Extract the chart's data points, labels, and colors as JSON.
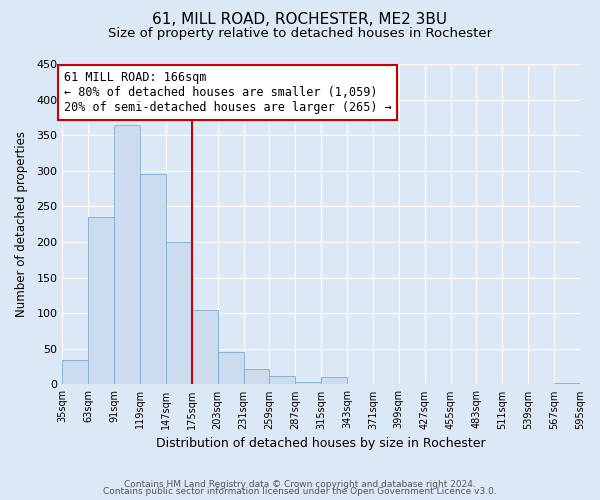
{
  "title": "61, MILL ROAD, ROCHESTER, ME2 3BU",
  "subtitle": "Size of property relative to detached houses in Rochester",
  "xlabel": "Distribution of detached houses by size in Rochester",
  "ylabel": "Number of detached properties",
  "bar_values": [
    35,
    235,
    365,
    295,
    200,
    105,
    45,
    22,
    12,
    3,
    10,
    0,
    0,
    0,
    0,
    0,
    0,
    0,
    0,
    2
  ],
  "bin_labels": [
    "35sqm",
    "63sqm",
    "91sqm",
    "119sqm",
    "147sqm",
    "175sqm",
    "203sqm",
    "231sqm",
    "259sqm",
    "287sqm",
    "315sqm",
    "343sqm",
    "371sqm",
    "399sqm",
    "427sqm",
    "455sqm",
    "483sqm",
    "511sqm",
    "539sqm",
    "567sqm",
    "595sqm"
  ],
  "bar_color": "#ccdcee",
  "bar_edge_color": "#7aadd4",
  "property_line_color": "#cc0000",
  "property_line_bin": 5,
  "annotation_text_line1": "61 MILL ROAD: 166sqm",
  "annotation_text_line2": "← 80% of detached houses are smaller (1,059)",
  "annotation_text_line3": "20% of semi-detached houses are larger (265) →",
  "ylim": [
    0,
    450
  ],
  "yticks": [
    0,
    50,
    100,
    150,
    200,
    250,
    300,
    350,
    400,
    450
  ],
  "background_color": "#dce8f5",
  "plot_bg_color": "#dce8f5",
  "grid_color": "#ffffff",
  "footer_line1": "Contains HM Land Registry data © Crown copyright and database right 2024.",
  "footer_line2": "Contains public sector information licensed under the Open Government Licence v3.0.",
  "title_fontsize": 11,
  "subtitle_fontsize": 9.5,
  "xlabel_fontsize": 9,
  "ylabel_fontsize": 8.5,
  "tick_fontsize": 8,
  "annotation_fontsize": 8.5,
  "footer_fontsize": 6.5
}
